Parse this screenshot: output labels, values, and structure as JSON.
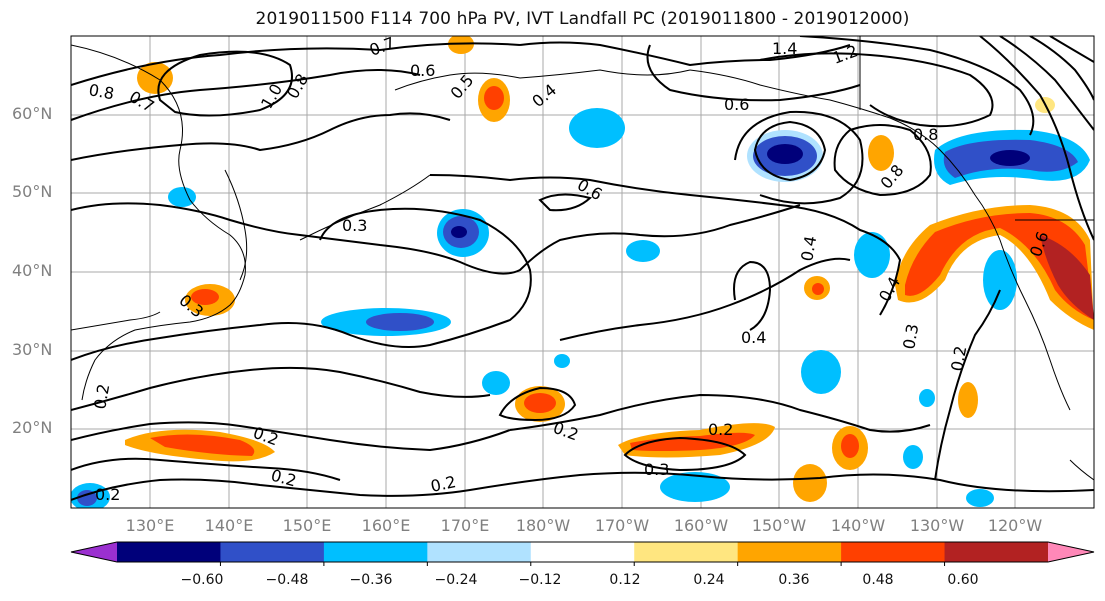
{
  "title": "2019011500 F114 700 hPa PV, IVT Landfall PC (2019011800 - 2019012000)",
  "lat_labels": [
    "60°N",
    "50°N",
    "40°N",
    "30°N",
    "20°N"
  ],
  "lon_labels": [
    "130°E",
    "140°E",
    "150°E",
    "160°E",
    "170°E",
    "180°W",
    "170°W",
    "160°W",
    "150°W",
    "140°W",
    "130°W",
    "120°W"
  ],
  "contour_labels": [
    "0.7",
    "0.6",
    "1.4",
    "1.2",
    "0.8",
    "0.7",
    "0.5",
    "0.4",
    "1.0",
    "0.8",
    "0.6",
    "0.8",
    "0.6",
    "0.3",
    "0.4",
    "0.4",
    "0.3",
    "0.8",
    "0.3",
    "0.2",
    "0.2",
    "0.2",
    "0.2",
    "0.2",
    "0.3",
    "0.2",
    "0.4",
    "0.2",
    "0.2",
    "0.6"
  ],
  "colorbar": {
    "ticks": [
      "−0.60",
      "−0.48",
      "−0.36",
      "−0.24",
      "−0.12",
      "0.12",
      "0.24",
      "0.36",
      "0.48",
      "0.60"
    ],
    "colors": [
      "#9b30d0",
      "#00007a",
      "#3050c8",
      "#00bfff",
      "#b0e2ff",
      "#ffffff",
      "#ffe680",
      "#ffa500",
      "#ff4000",
      "#b22222",
      "#ff88b8"
    ]
  }
}
